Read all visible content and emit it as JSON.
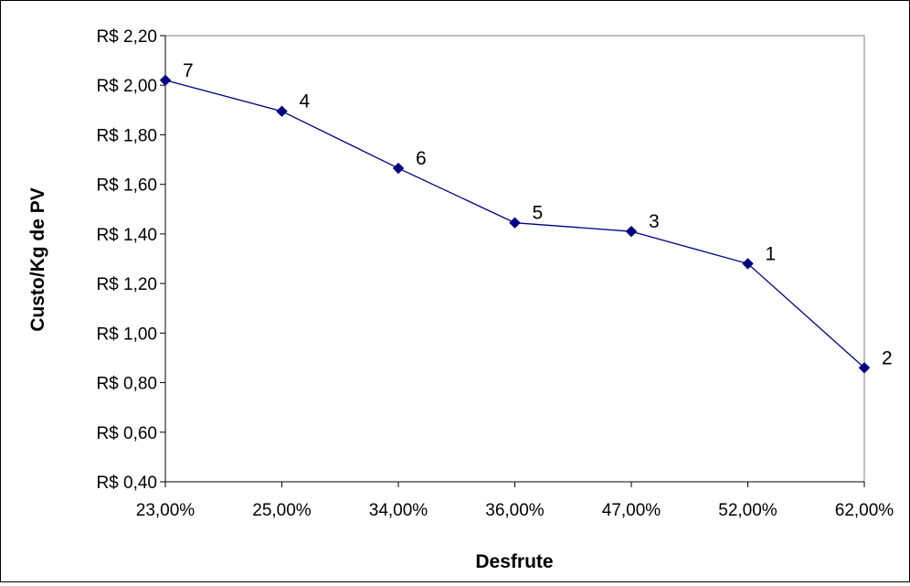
{
  "chart_data": {
    "type": "line",
    "title": "",
    "xlabel": "Desfrute",
    "ylabel": "Custo/Kg de PV",
    "categories": [
      "23,00%",
      "25,00%",
      "34,00%",
      "36,00%",
      "47,00%",
      "52,00%",
      "62,00%"
    ],
    "series": [
      {
        "values": [
          2.02,
          1.895,
          1.665,
          1.445,
          1.41,
          1.28,
          0.86
        ],
        "point_labels": [
          "7",
          "4",
          "6",
          "5",
          "3",
          "1",
          "2"
        ]
      }
    ],
    "ylim": [
      0.4,
      2.2
    ],
    "yticks": [
      0.4,
      0.6,
      0.8,
      1.0,
      1.2,
      1.4,
      1.6,
      1.8,
      2.0,
      2.2
    ],
    "ytick_labels": [
      "R$ 0,40",
      "R$ 0,60",
      "R$ 0,80",
      "R$ 1,00",
      "R$ 1,20",
      "R$ 1,40",
      "R$ 1,60",
      "R$ 1,80",
      "R$ 2,00",
      "R$ 2,20"
    ],
    "grid": false,
    "legend": "none",
    "colors": {
      "line": "#000080",
      "marker": "#000080",
      "plot_border": "#808080"
    }
  }
}
